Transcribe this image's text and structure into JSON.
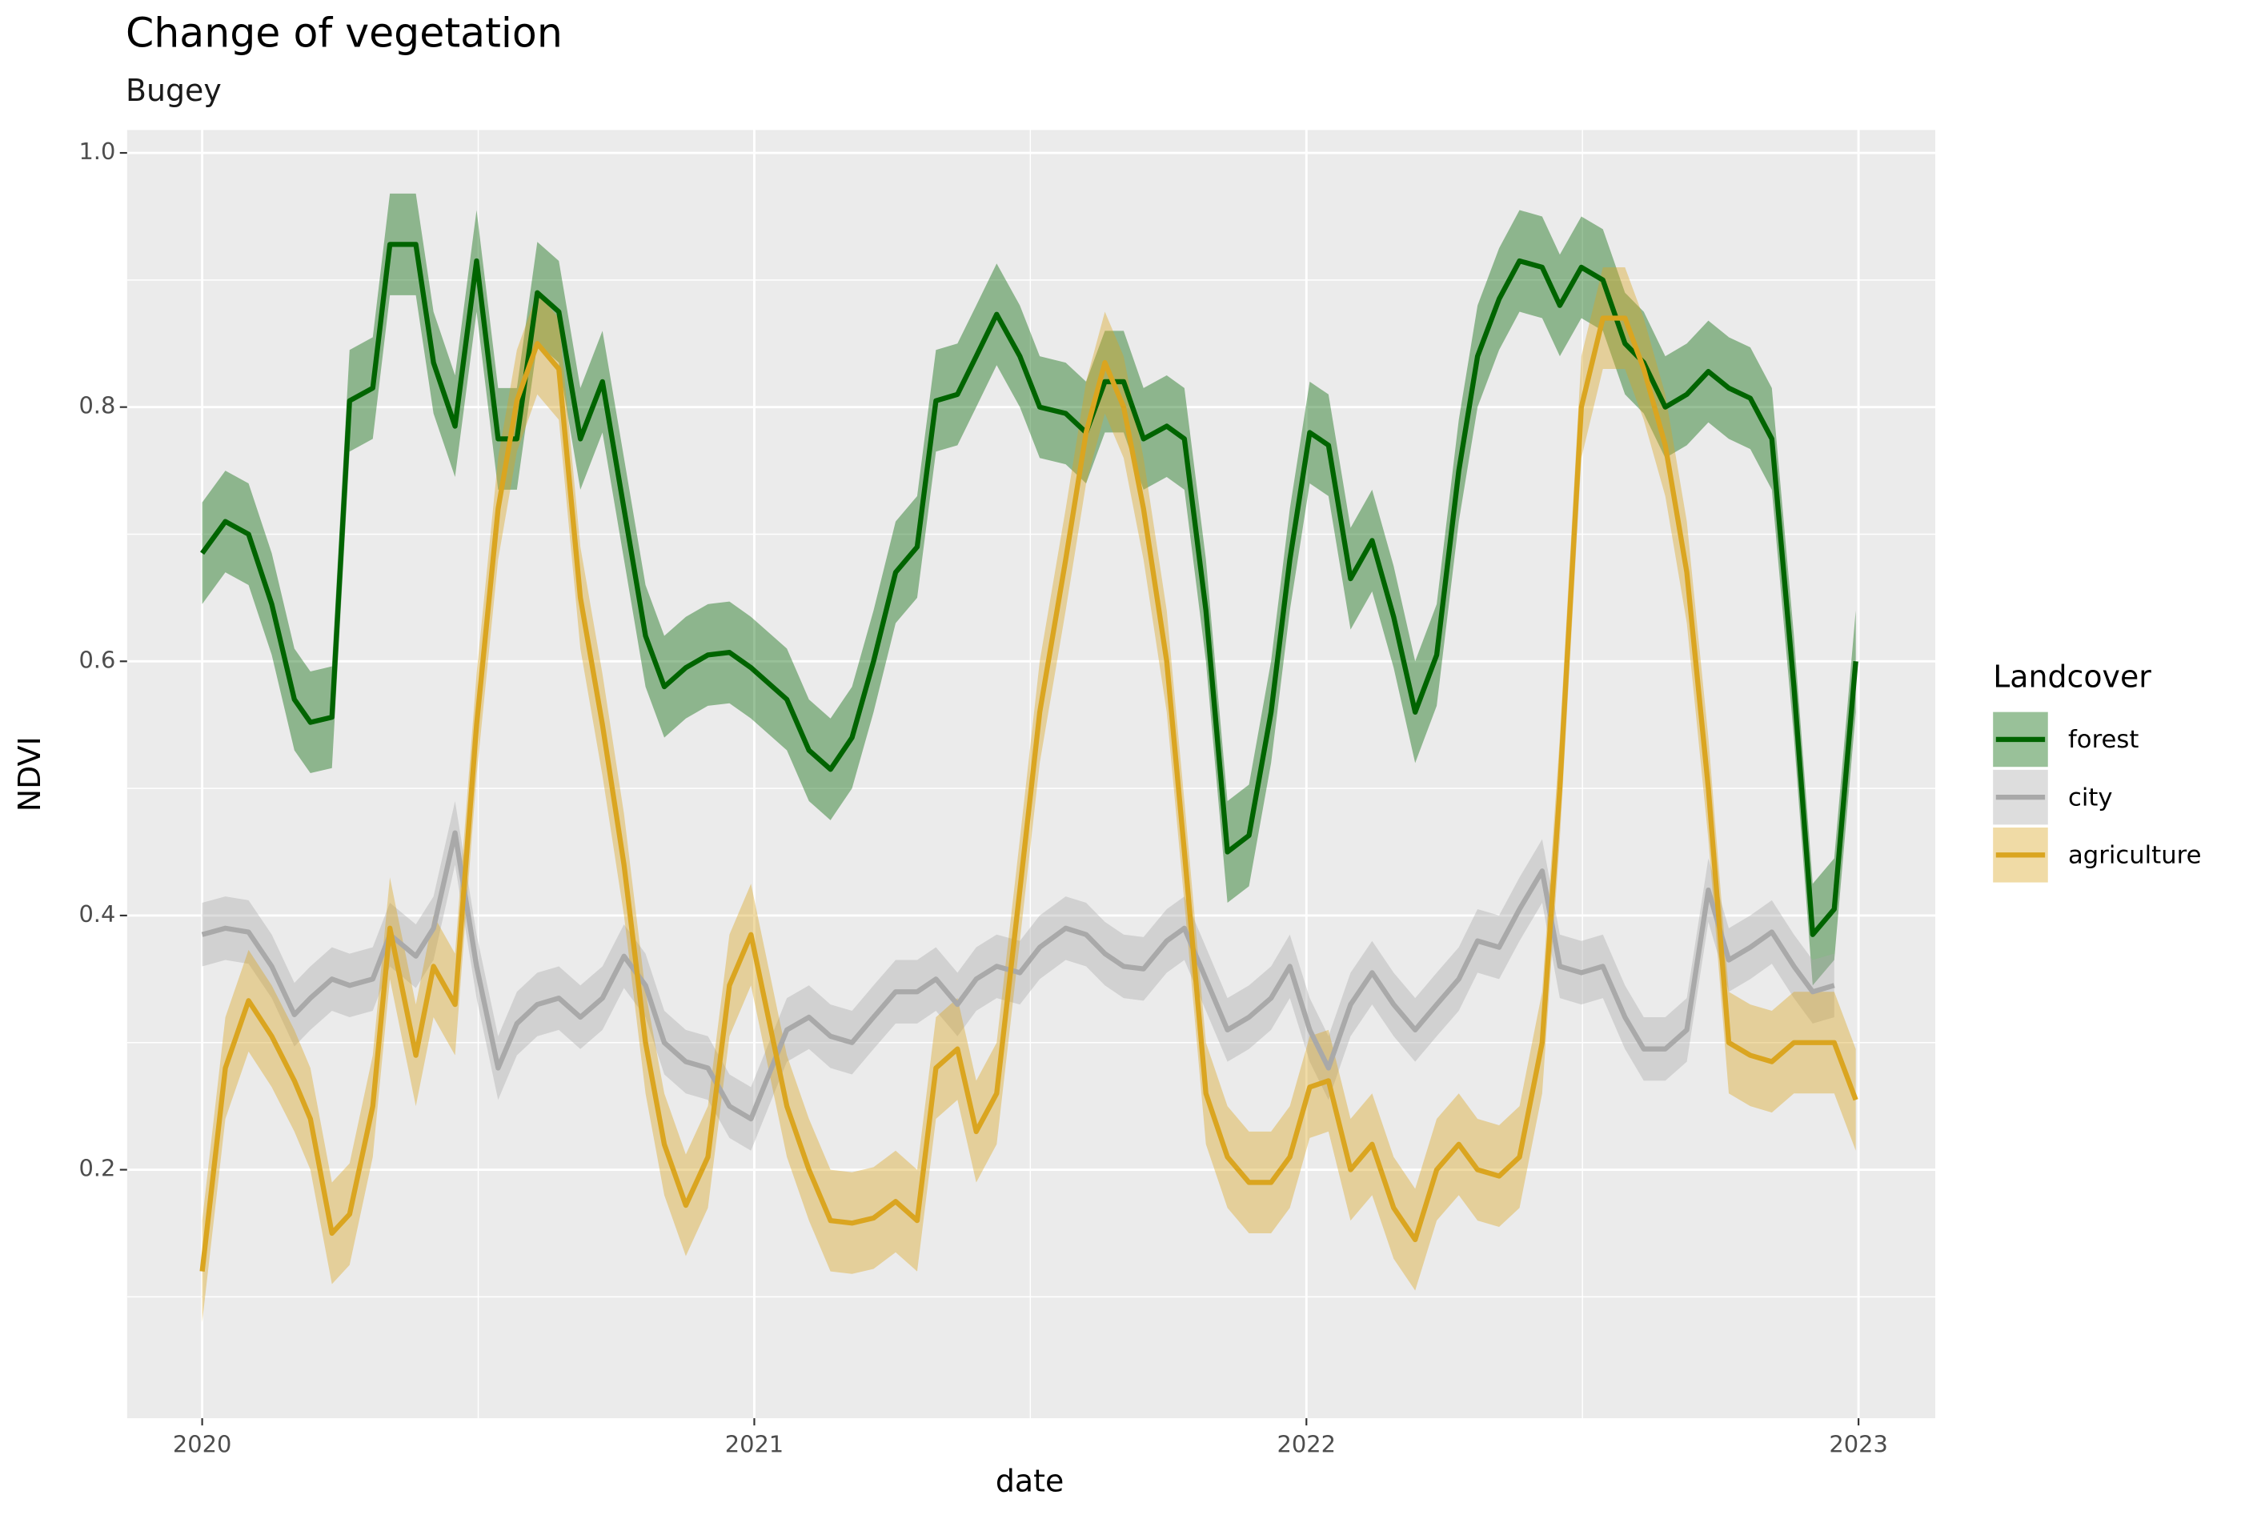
{
  "chart_data": {
    "type": "line",
    "title": "Change of vegetation",
    "subtitle": "Bugey",
    "x_label": "date",
    "y_label": "NDVI",
    "legend_title": "Landcover",
    "legend_position": "right",
    "grid": true,
    "xlim": [
      2019.864,
      2023.139
    ],
    "xticks": [
      2020,
      2021,
      2022,
      2023
    ],
    "ylim": [
      0.0045,
      1.018
    ],
    "yticks": [
      0.2,
      0.4,
      0.6,
      0.8,
      {
        "value": 1,
        "label": "1.0"
      }
    ],
    "x": [
      2020.0,
      2020.042,
      2020.084,
      2020.126,
      2020.167,
      2020.196,
      2020.235,
      2020.267,
      2020.309,
      2020.34,
      2020.387,
      2020.419,
      2020.458,
      2020.497,
      2020.536,
      2020.57,
      2020.607,
      2020.646,
      2020.685,
      2020.725,
      2020.764,
      2020.803,
      2020.837,
      2020.876,
      2020.916,
      2020.955,
      2020.994,
      2021.059,
      2021.099,
      2021.138,
      2021.177,
      2021.216,
      2021.256,
      2021.295,
      2021.329,
      2021.368,
      2021.402,
      2021.439,
      2021.481,
      2021.517,
      2021.564,
      2021.601,
      2021.635,
      2021.669,
      2021.705,
      2021.747,
      2021.779,
      2021.818,
      2021.857,
      2021.896,
      2021.936,
      2021.97,
      2022.006,
      2022.04,
      2022.08,
      2022.119,
      2022.158,
      2022.197,
      2022.236,
      2022.276,
      2022.31,
      2022.349,
      2022.386,
      2022.427,
      2022.459,
      2022.498,
      2022.537,
      2022.577,
      2022.611,
      2022.65,
      2022.689,
      2022.728,
      2022.765,
      2022.804,
      2022.843,
      2022.883,
      2022.917,
      2022.956,
      2022.995
    ],
    "series": [
      {
        "name": "forest",
        "color": "#006400",
        "se": 0.04,
        "values": [
          0.685,
          0.71,
          0.7,
          0.645,
          0.57,
          0.552,
          0.556,
          0.805,
          0.815,
          0.928,
          0.928,
          0.835,
          0.785,
          0.915,
          0.775,
          0.775,
          0.89,
          0.875,
          0.775,
          0.82,
          0.72,
          0.62,
          0.58,
          0.595,
          0.605,
          0.607,
          0.595,
          0.57,
          0.53,
          0.515,
          0.54,
          0.6,
          0.67,
          0.69,
          0.805,
          0.81,
          0.84,
          0.873,
          0.84,
          0.8,
          0.795,
          0.78,
          0.82,
          0.82,
          0.775,
          0.785,
          0.775,
          0.64,
          0.45,
          0.463,
          0.56,
          0.68,
          0.78,
          0.77,
          0.665,
          0.695,
          0.635,
          0.56,
          0.605,
          0.75,
          0.84,
          0.885,
          0.915,
          0.91,
          0.88,
          0.91,
          0.9,
          0.85,
          0.835,
          0.8,
          0.81,
          0.828,
          0.815,
          0.807,
          0.775,
          0.58,
          0.385,
          0.405,
          0.6
        ]
      },
      {
        "name": "city",
        "color": "#a9a9a9",
        "se": 0.025,
        "values": [
          0.385,
          0.39,
          0.387,
          0.36,
          0.322,
          0.335,
          0.35,
          0.345,
          0.35,
          0.385,
          0.368,
          0.39,
          0.465,
          0.36,
          0.28,
          0.315,
          0.33,
          0.335,
          0.32,
          0.335,
          0.368,
          0.345,
          0.3,
          0.285,
          0.28,
          0.25,
          0.24,
          0.31,
          0.32,
          0.305,
          0.3,
          0.32,
          0.34,
          0.34,
          0.35,
          0.33,
          0.35,
          0.36,
          0.355,
          0.375,
          0.39,
          0.385,
          0.37,
          0.36,
          0.358,
          0.38,
          0.39,
          0.35,
          0.31,
          0.32,
          0.335,
          0.36,
          0.31,
          0.28,
          0.33,
          0.355,
          0.33,
          0.31,
          0.33,
          0.35,
          0.38,
          0.375,
          0.405,
          0.435,
          0.36,
          0.355,
          0.36,
          0.32,
          0.295,
          0.295,
          0.31,
          0.42,
          0.365,
          0.375,
          0.387,
          0.36,
          0.34,
          0.345,
          null
        ]
      },
      {
        "name": "agriculture",
        "color": "#daa520",
        "se": 0.04,
        "values": [
          0.12,
          0.28,
          0.333,
          0.305,
          0.27,
          0.24,
          0.15,
          0.165,
          0.25,
          0.39,
          0.29,
          0.36,
          0.33,
          0.55,
          0.72,
          0.805,
          0.85,
          0.83,
          0.65,
          0.55,
          0.44,
          0.3,
          0.22,
          0.172,
          0.21,
          0.345,
          0.385,
          0.25,
          0.2,
          0.16,
          0.158,
          0.162,
          0.175,
          0.16,
          0.28,
          0.295,
          0.23,
          0.26,
          0.42,
          0.56,
          0.68,
          0.78,
          0.835,
          0.8,
          0.72,
          0.6,
          0.45,
          0.26,
          0.21,
          0.19,
          0.19,
          0.21,
          0.265,
          0.27,
          0.2,
          0.22,
          0.17,
          0.145,
          0.2,
          0.22,
          0.2,
          0.195,
          0.21,
          0.3,
          0.5,
          0.8,
          0.87,
          0.87,
          0.83,
          0.77,
          0.67,
          0.5,
          0.3,
          0.29,
          0.285,
          0.3,
          0.3,
          0.3,
          0.255
        ]
      }
    ]
  }
}
